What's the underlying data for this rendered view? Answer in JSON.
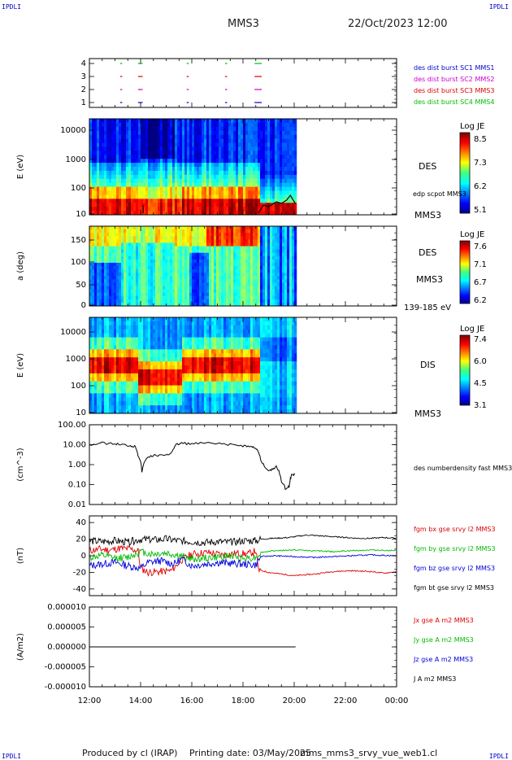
{
  "header": {
    "corner_label": "IPDLI",
    "mission": "MMS3",
    "datetime": "22/Oct/2023 12:00"
  },
  "footer": {
    "produced_by": "Produced by cl (IRAP)",
    "printing_date": "Printing date: 03/May/2025",
    "script_name": "mms_mms3_srvy_vue_web1.cl"
  },
  "colors": {
    "mms1": "#0000cc",
    "mms2": "#cc00cc",
    "mms3": "#dd0000",
    "mms4": "#00bb00",
    "bx": "#dd0000",
    "by": "#00bb00",
    "bz": "#0000dd",
    "bt": "#000000"
  },
  "chart_data": [
    {
      "type": "scatter",
      "panel": "burst-availability",
      "yticks": [
        "4",
        "3",
        "2",
        "1"
      ],
      "series": [
        {
          "name": "des dist burst SC1 MMS1",
          "color": "#0000cc",
          "level": 1,
          "intervals": [
            [
              13.2,
              13.25
            ],
            [
              13.9,
              14.05
            ],
            [
              15.8,
              15.85
            ],
            [
              17.3,
              17.35
            ],
            [
              18.45,
              18.7
            ]
          ]
        },
        {
          "name": "des dist burst SC2 MMS2",
          "color": "#cc00cc",
          "level": 2,
          "intervals": [
            [
              13.2,
              13.25
            ],
            [
              13.9,
              14.05
            ],
            [
              15.8,
              15.85
            ],
            [
              17.3,
              17.35
            ],
            [
              18.45,
              18.7
            ]
          ]
        },
        {
          "name": "des dist burst SC3 MMS3",
          "color": "#dd0000",
          "level": 3,
          "intervals": [
            [
              13.2,
              13.25
            ],
            [
              13.9,
              14.05
            ],
            [
              15.8,
              15.85
            ],
            [
              17.3,
              17.35
            ],
            [
              18.45,
              18.7
            ]
          ]
        },
        {
          "name": "des dist burst SC4 MMS4",
          "color": "#00bb00",
          "level": 4,
          "intervals": [
            [
              13.2,
              13.25
            ],
            [
              13.9,
              14.05
            ],
            [
              15.8,
              15.85
            ],
            [
              17.3,
              17.35
            ],
            [
              18.45,
              18.7
            ]
          ]
        }
      ]
    },
    {
      "type": "heatmap",
      "panel": "des-energy-spectrogram",
      "ylabel": "E (eV)",
      "yticks": [
        "10000",
        "1000",
        "100",
        "10"
      ],
      "instrument": "DES",
      "spacecraft": "MMS3",
      "overlay_label": "edp scpot MMS3",
      "colorbar_title": "Log JE",
      "colorbar_ticks": [
        "8.5",
        "7.3",
        "6.2",
        "5.1"
      ],
      "data_end_hour": 20.05
    },
    {
      "type": "heatmap",
      "panel": "des-pitch-angle",
      "ylabel": "a (deg)",
      "yticks": [
        "150",
        "100",
        "50",
        "0"
      ],
      "instrument": "DES",
      "spacecraft": "MMS3",
      "energy_range": "139-185 eV",
      "colorbar_title": "Log JE",
      "colorbar_ticks": [
        "7.6",
        "7.1",
        "6.7",
        "6.2"
      ],
      "data_end_hour": 20.05
    },
    {
      "type": "heatmap",
      "panel": "dis-energy-spectrogram",
      "ylabel": "E (eV)",
      "yticks": [
        "10000",
        "1000",
        "100",
        "10"
      ],
      "instrument": "DIS",
      "spacecraft": "MMS3",
      "colorbar_title": "Log JE",
      "colorbar_ticks": [
        "7.4",
        "6.0",
        "4.5",
        "3.1"
      ],
      "data_end_hour": 20.05
    },
    {
      "type": "line",
      "panel": "electron-density",
      "ylabel": "(cm^-3)",
      "yticks": [
        "100.00",
        "10.00",
        "1.00",
        "0.10",
        "0.01"
      ],
      "ylim": [
        0.01,
        100
      ],
      "log": true,
      "series": [
        {
          "name": "des numberdensity fast MMS3",
          "color": "#000000",
          "x": [
            12.0,
            12.5,
            13.0,
            13.3,
            13.6,
            13.8,
            13.9,
            14.05,
            14.3,
            14.6,
            15.0,
            15.2,
            15.4,
            15.6,
            16.0,
            16.5,
            17.0,
            17.5,
            18.0,
            18.3,
            18.5,
            18.6,
            18.7,
            18.9,
            19.1,
            19.3,
            19.5,
            19.65,
            19.8,
            19.9,
            20.05
          ],
          "y": [
            10,
            12,
            11,
            10,
            9,
            8,
            3,
            0.45,
            2.5,
            3,
            2.8,
            4,
            10,
            12,
            11,
            12,
            11,
            10,
            9,
            8,
            7,
            4,
            1.5,
            0.6,
            0.5,
            0.8,
            0.15,
            0.06,
            0.08,
            0.3,
            0.35
          ]
        }
      ]
    },
    {
      "type": "line",
      "panel": "magnetic-field",
      "ylabel": "(nT)",
      "yticks": [
        "40",
        "20",
        "0",
        "-20",
        "-40"
      ],
      "ylim": [
        -48,
        48
      ],
      "series": [
        {
          "name": "fgm bx gse srvy l2 MMS3",
          "color": "#dd0000",
          "x": [
            12.0,
            12.4,
            12.8,
            13.2,
            13.6,
            13.9,
            14.0,
            14.3,
            14.8,
            15.2,
            15.6,
            16.0,
            16.6,
            17.2,
            17.8,
            18.2,
            18.5,
            18.6,
            19.0,
            19.5,
            20.0,
            20.8,
            21.5,
            22.2,
            23.0,
            23.5,
            24.0
          ],
          "y": [
            6,
            8,
            7,
            9,
            8,
            6,
            -15,
            -20,
            -19,
            -18,
            -5,
            2,
            4,
            1,
            3,
            2,
            6,
            -17,
            -20,
            -22,
            -24,
            -22,
            -19,
            -18,
            -19,
            -21,
            -19
          ]
        },
        {
          "name": "fgm by gse srvy l2 MMS3",
          "color": "#00bb00",
          "x": [
            12.0,
            12.5,
            13.0,
            13.5,
            14.0,
            14.4,
            15.0,
            15.5,
            16.0,
            16.5,
            17.0,
            17.5,
            18.0,
            18.5,
            18.7,
            19.2,
            20.0,
            20.8,
            21.5,
            22.2,
            23.0,
            24.0
          ],
          "y": [
            -2,
            0,
            -3,
            -2,
            5,
            2,
            3,
            0,
            -4,
            -3,
            -2,
            0,
            -3,
            -2,
            4,
            6,
            7,
            6,
            5,
            6,
            7,
            6
          ]
        },
        {
          "name": "fgm bz gse srvy l2 MMS3",
          "color": "#0000dd",
          "x": [
            12.0,
            12.5,
            13.0,
            13.5,
            14.0,
            14.3,
            14.8,
            15.3,
            15.6,
            16.0,
            16.5,
            17.0,
            17.5,
            18.0,
            18.5,
            18.7,
            19.2,
            20.0,
            20.8,
            21.5,
            22.2,
            23.0,
            24.0
          ],
          "y": [
            -12,
            -10,
            -8,
            -12,
            -15,
            -8,
            -6,
            -10,
            -4,
            -12,
            -10,
            -8,
            -9,
            -10,
            -11,
            -1,
            0,
            -1,
            -2,
            -1,
            0,
            1,
            0
          ]
        },
        {
          "name": "fgm bt gse srvy l2 MMS3",
          "color": "#000000",
          "x": [
            12.0,
            12.5,
            13.0,
            13.5,
            14.0,
            14.5,
            15.0,
            15.5,
            16.0,
            16.5,
            17.0,
            17.5,
            18.0,
            18.5,
            18.7,
            19.2,
            19.8,
            20.5,
            21.0,
            21.5,
            22.0,
            22.5,
            23.0,
            23.5,
            24.0
          ],
          "y": [
            18,
            17,
            18,
            16,
            20,
            19,
            20,
            18,
            17,
            16,
            17,
            16,
            18,
            18,
            20,
            21,
            22,
            25,
            24,
            23,
            22,
            21,
            21,
            22,
            21
          ]
        }
      ]
    },
    {
      "type": "line",
      "panel": "current-density",
      "ylabel": "(A/m2)",
      "yticks": [
        "0.000010",
        "0.000005",
        "0.000000",
        "-0.000005",
        "-0.000010"
      ],
      "ylim": [
        -1e-05,
        1e-05
      ],
      "series": [
        {
          "name": "Jx gse A m2 MMS3",
          "color": "#dd0000",
          "x": [
            12.0,
            20.05
          ],
          "y": [
            0,
            0
          ]
        },
        {
          "name": "Jy gse A m2 MMS3",
          "color": "#00bb00",
          "x": [
            12.0,
            20.05
          ],
          "y": [
            0,
            0
          ]
        },
        {
          "name": "Jz gse A m2 MMS3",
          "color": "#0000dd",
          "x": [
            12.0,
            20.05
          ],
          "y": [
            0,
            0
          ]
        },
        {
          "name": "J A m2 MMS3",
          "color": "#000000",
          "x": [
            12.0,
            20.05
          ],
          "y": [
            0,
            0
          ]
        }
      ]
    }
  ],
  "time_axis": {
    "ticks": [
      "12:00",
      "14:00",
      "16:00",
      "18:00",
      "20:00",
      "22:00",
      "00:00"
    ],
    "range_hours": [
      12,
      24
    ]
  }
}
